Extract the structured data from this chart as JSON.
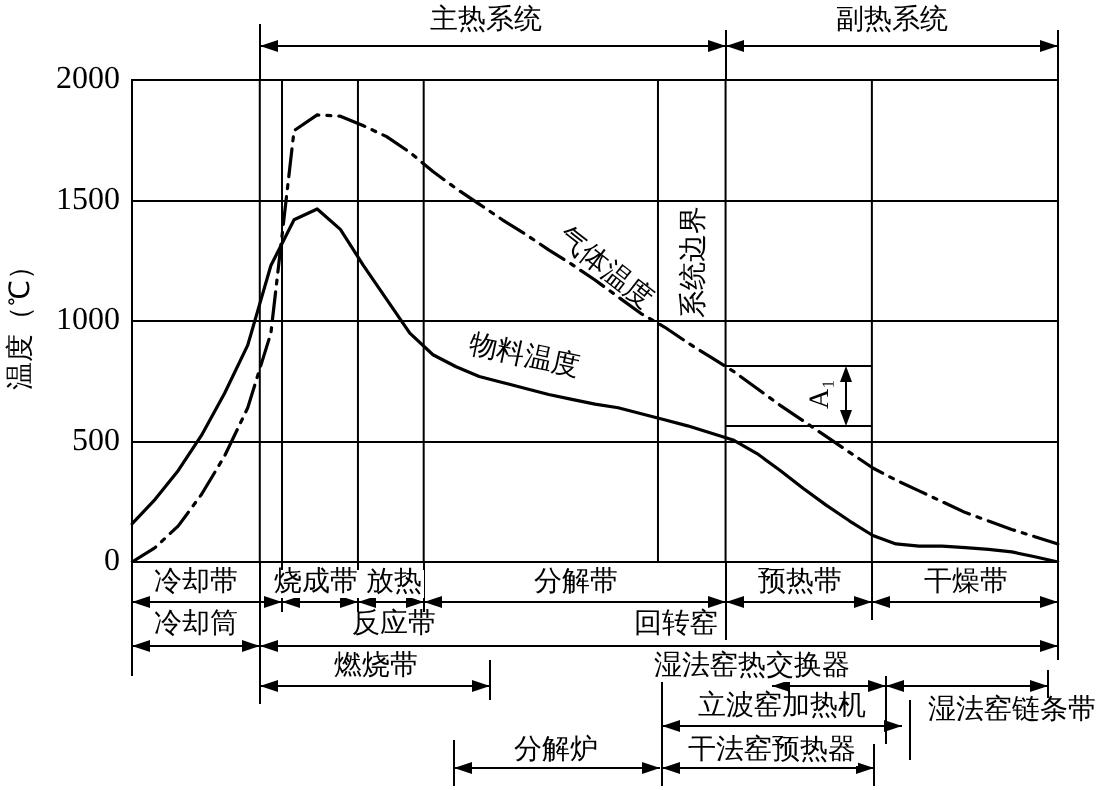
{
  "chart_data": {
    "type": "line",
    "ylabel": "温度（℃）",
    "categories": [
      null,
      null,
      null,
      null,
      null,
      null,
      null,
      null,
      null,
      null,
      null,
      null,
      null,
      null,
      null,
      null,
      null,
      null,
      null,
      null,
      null,
      null,
      null,
      null,
      null,
      null,
      null,
      null,
      null,
      null,
      null,
      null,
      null,
      null,
      null,
      null,
      null,
      null,
      null,
      null,
      null
    ],
    "ylim": [
      0,
      2000
    ],
    "yticks": [
      0,
      500,
      1000,
      1500,
      2000
    ],
    "grid": "y",
    "tick_labels": "y",
    "legend": false,
    "marker": "none",
    "series": [
      {
        "name": "气体温度",
        "color": "#000000",
        "line_style": "dashed",
        "values": [
          0,
          60,
          150,
          280,
          440,
          640,
          950,
          1790,
          1855,
          1850,
          1810,
          1765,
          1700,
          1620,
          1550,
          1485,
          1420,
          1360,
          1295,
          1235,
          1170,
          1100,
          1030,
          975,
          910,
          850,
          790,
          720,
          650,
          585,
          520,
          455,
          390,
          340,
          295,
          250,
          205,
          170,
          135,
          105,
          75
        ]
      },
      {
        "name": "物料温度",
        "color": "#000000",
        "line_style": "solid",
        "values": [
          158,
          260,
          380,
          525,
          700,
          900,
          1230,
          1420,
          1465,
          1380,
          1230,
          1090,
          950,
          860,
          810,
          770,
          745,
          720,
          695,
          675,
          655,
          640,
          615,
          590,
          565,
          535,
          505,
          450,
          380,
          305,
          235,
          170,
          110,
          75,
          66,
          66,
          60,
          52,
          42,
          22,
          0
        ]
      }
    ],
    "annotations": [
      "主热系统",
      "副热系统",
      "系统边界",
      "A₁",
      "冷却带",
      "烧成带",
      "放热",
      "分解带",
      "预热带",
      "干燥带",
      "冷却筒",
      "反应带",
      "回转窑",
      "燃烧带",
      "湿法窑热交换器",
      "立波窑加热机",
      "湿法窑链条带",
      "分解炉",
      "干法窑预热器"
    ]
  }
}
